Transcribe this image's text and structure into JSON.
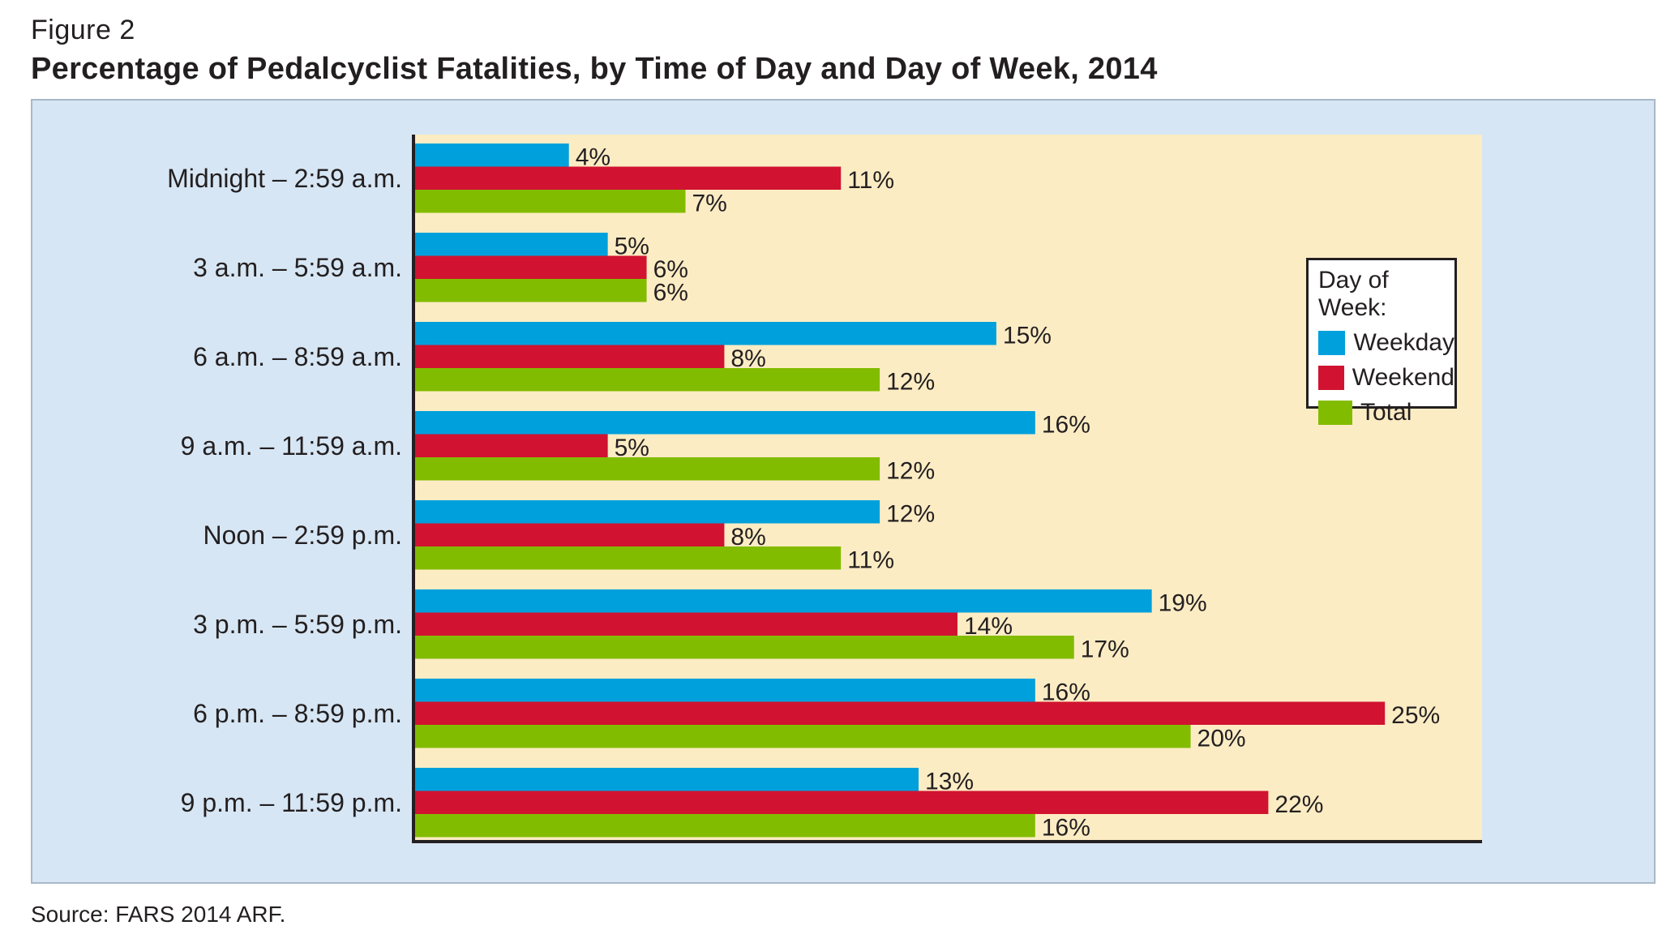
{
  "figure_label": "Figure 2",
  "title": "Percentage of Pedalcyclist Fatalities, by Time of Day and Day of Week, 2014",
  "source": "Source: FARS 2014 ARF.",
  "legend": {
    "title": "Day of Week:",
    "items": [
      "Weekday",
      "Weekend",
      "Total"
    ]
  },
  "colors": {
    "weekday": "#00a0dc",
    "weekend": "#d11331",
    "total": "#82bc00",
    "plot_background": "#fcecc4",
    "panel_background": "#d7e6f4",
    "axis": "#231f20"
  },
  "chart_data": {
    "type": "bar",
    "orientation": "horizontal",
    "title": "Percentage of Pedalcyclist Fatalities, by Time of Day and Day of Week, 2014",
    "categories": [
      "Midnight – 2:59 a.m.",
      "3 a.m. – 5:59 a.m.",
      "6 a.m. – 8:59 a.m.",
      "9 a.m. – 11:59 a.m.",
      "Noon – 2:59 p.m.",
      "3 p.m. – 5:59 p.m.",
      "6 p.m. – 8:59 p.m.",
      "9 p.m. – 11:59 p.m."
    ],
    "series": [
      {
        "name": "Weekday",
        "values": [
          4,
          5,
          15,
          16,
          12,
          19,
          16,
          13
        ]
      },
      {
        "name": "Weekend",
        "values": [
          11,
          6,
          8,
          5,
          8,
          14,
          25,
          22
        ]
      },
      {
        "name": "Total",
        "values": [
          7,
          6,
          12,
          12,
          11,
          17,
          20,
          16
        ]
      }
    ],
    "value_labels": {
      "Weekday": [
        "4%",
        "5%",
        "15%",
        "16%",
        "12%",
        "19%",
        "16%",
        "13%"
      ],
      "Weekend": [
        "11%",
        "6%",
        "8%",
        "5%",
        "8%",
        "14%",
        "25%",
        "22%"
      ],
      "Total": [
        "7%",
        "6%",
        "12%",
        "12%",
        "11%",
        "17%",
        "20%",
        "16%"
      ]
    },
    "xlim": [
      0,
      27.5
    ],
    "xlabel": "",
    "ylabel": "",
    "grid": false,
    "legend_position": "top-right"
  }
}
